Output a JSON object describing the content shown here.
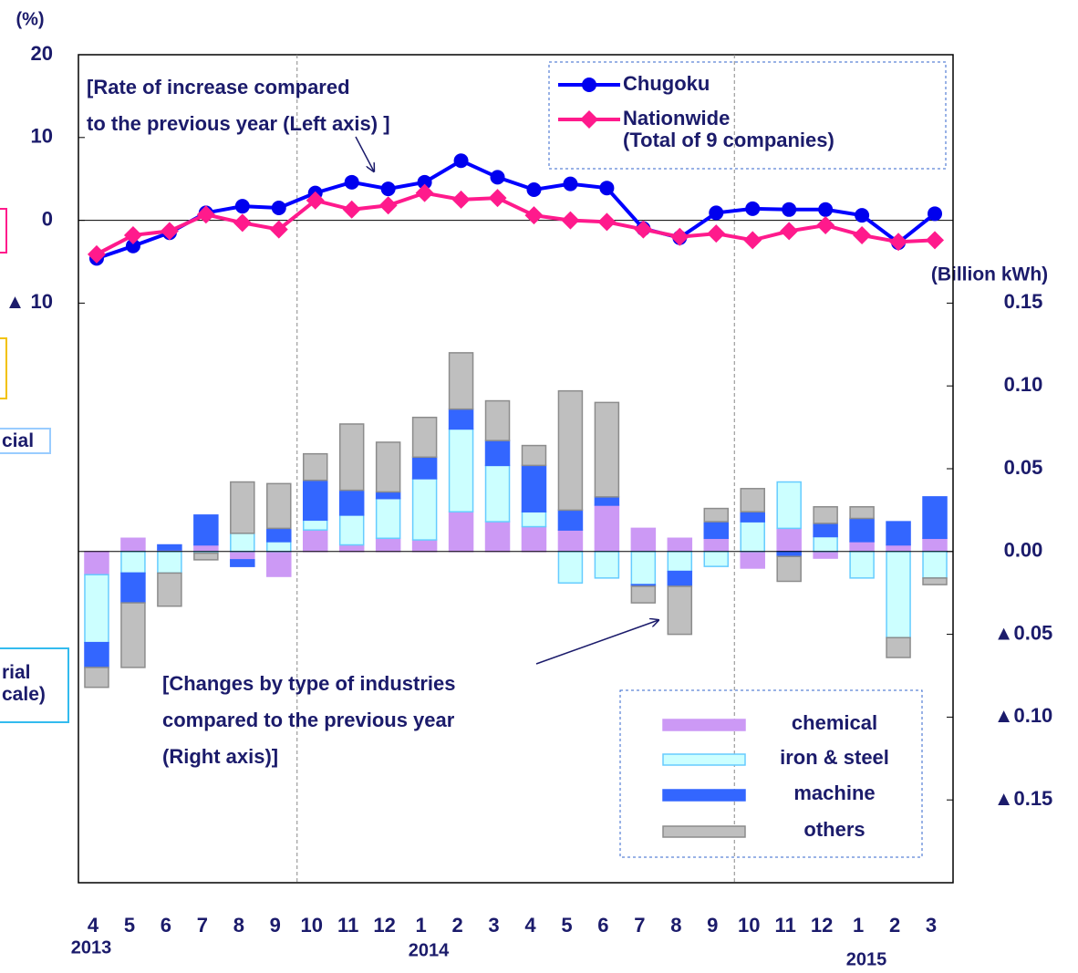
{
  "chart_data": {
    "type": "combo",
    "ylabel": "(%)",
    "y2label": "(Billion kWh)",
    "categories": [
      "4",
      "5",
      "6",
      "7",
      "8",
      "9",
      "10",
      "11",
      "12",
      "1",
      "2",
      "3",
      "4",
      "5",
      "6",
      "7",
      "8",
      "9",
      "10",
      "11",
      "12",
      "1",
      "2",
      "3"
    ],
    "x_group_labels": [
      "2013",
      "2014",
      "2015"
    ],
    "ylim": [
      -80,
      20
    ],
    "yticks": [
      20,
      10,
      0,
      {
        "value": -10,
        "label": "▲ 10"
      }
    ],
    "y2lim": [
      -0.2,
      0.3
    ],
    "y2ticks": [
      {
        "value": 0.15,
        "label": "0.15"
      },
      {
        "value": 0.1,
        "label": "0.10"
      },
      {
        "value": 0.05,
        "label": "0.05"
      },
      {
        "value": 0,
        "label": "0.00"
      },
      {
        "value": -0.05,
        "label": "▲0.05"
      },
      {
        "value": -0.1,
        "label": "▲0.10"
      },
      {
        "value": -0.15,
        "label": "▲0.15"
      }
    ],
    "annotations": [
      "[Rate of increase compared\nto the previous year (Left axis) ]",
      "[Changes by type of industries\ncompared to the previous year\n(Right axis)]"
    ],
    "series": [
      {
        "name": "Chugoku",
        "type": "line",
        "marker": "circle",
        "color": "#0000ff",
        "values": [
          -4.6,
          -3.1,
          -1.5,
          0.9,
          1.7,
          1.5,
          3.3,
          4.6,
          3.8,
          4.6,
          7.2,
          5.2,
          3.7,
          4.4,
          3.9,
          -1.0,
          -2.1,
          0.9,
          1.4,
          1.3,
          1.3,
          0.6,
          -2.7,
          0.8
        ]
      },
      {
        "name": "Nationwide\n(Total of 9 companies)",
        "type": "line",
        "marker": "diamond",
        "color": "#ff1a8c",
        "values": [
          -4.1,
          -1.8,
          -1.3,
          0.7,
          -0.3,
          -1.1,
          2.4,
          1.3,
          1.8,
          3.3,
          2.5,
          2.7,
          0.6,
          0.0,
          -0.2,
          -1.1,
          -2.0,
          -1.6,
          -2.4,
          -1.3,
          -0.6,
          -1.8,
          -2.6,
          -2.4
        ]
      },
      {
        "name": "chemical",
        "type": "bar",
        "axis": "y2",
        "color": "#cc99f5",
        "edgecolor": "#cc99f5",
        "values": [
          -0.014,
          0.008,
          0.001,
          0.004,
          -0.005,
          -0.015,
          0.013,
          0.004,
          0.008,
          0.007,
          0.024,
          0.018,
          0.015,
          0.013,
          0.028,
          0.014,
          0.008,
          0.008,
          -0.01,
          0.014,
          -0.004,
          0.006,
          0.004,
          0.008
        ]
      },
      {
        "name": "iron & steel",
        "type": "bar",
        "axis": "y2",
        "color": "#ccffff",
        "edgecolor": "#66ccff",
        "values": [
          -0.041,
          -0.013,
          -0.013,
          -0.001,
          0.011,
          0.006,
          0.006,
          0.018,
          0.024,
          0.037,
          0.05,
          0.034,
          0.009,
          -0.019,
          -0.016,
          -0.02,
          -0.012,
          -0.009,
          0.018,
          0.028,
          0.009,
          -0.016,
          -0.052,
          -0.016
        ]
      },
      {
        "name": "machine",
        "type": "bar",
        "axis": "y2",
        "color": "#3366ff",
        "edgecolor": "#3366ff",
        "values": [
          -0.015,
          -0.018,
          0.003,
          0.018,
          -0.004,
          0.008,
          0.024,
          0.015,
          0.004,
          0.013,
          0.012,
          0.015,
          0.028,
          0.012,
          0.005,
          -0.001,
          -0.009,
          0.01,
          0.006,
          -0.003,
          0.008,
          0.014,
          0.014,
          0.025
        ]
      },
      {
        "name": "others",
        "type": "bar",
        "axis": "y2",
        "color": "#bfbfbf",
        "edgecolor": "#8c8c8c",
        "values": [
          -0.012,
          -0.039,
          -0.02,
          -0.004,
          0.031,
          0.027,
          0.016,
          0.04,
          0.03,
          0.024,
          0.034,
          0.024,
          0.012,
          0.072,
          0.057,
          -0.01,
          -0.029,
          0.008,
          0.014,
          -0.015,
          0.01,
          0.007,
          -0.012,
          -0.004
        ]
      }
    ]
  },
  "cropped_labels": [
    "cial",
    "rial\ncale)"
  ]
}
